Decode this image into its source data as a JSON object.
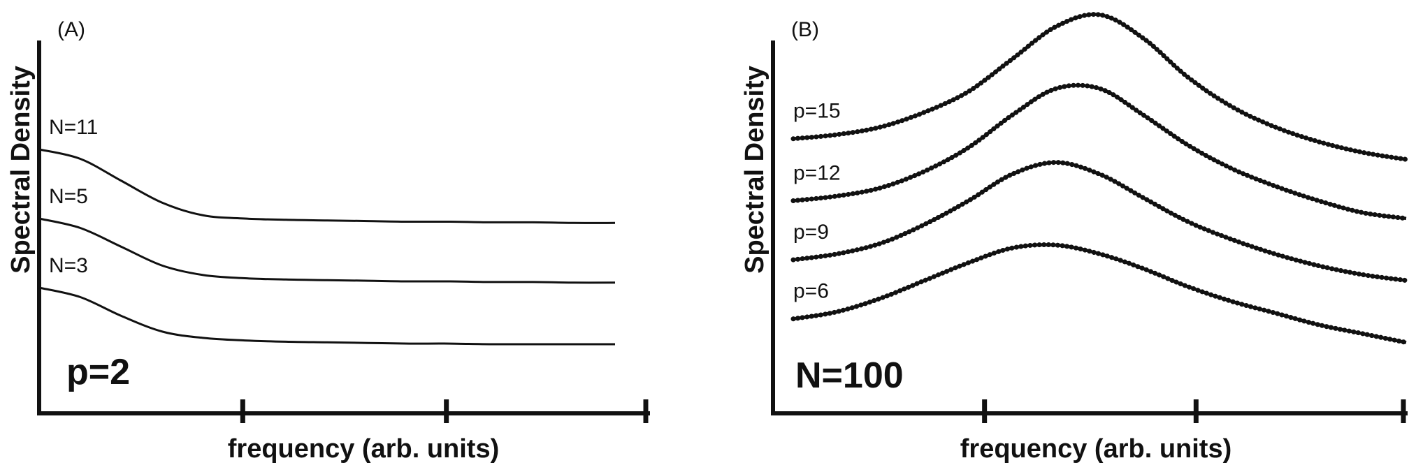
{
  "chart_data": [
    {
      "type": "line",
      "panel_label": "(A)",
      "ylabel": "Spectral Density",
      "xlabel": "frequency (arb. units)",
      "annotation": "p=2",
      "x": [
        0,
        0.5,
        1,
        1.5,
        2,
        2.5,
        3,
        3.5,
        4,
        4.5,
        5,
        5.5,
        6,
        6.5,
        7
      ],
      "series": [
        {
          "name": "N=11",
          "values": [
            4.2,
            4.05,
            3.7,
            3.35,
            3.15,
            3.1,
            3.08,
            3.07,
            3.06,
            3.05,
            3.05,
            3.04,
            3.04,
            3.03,
            3.03
          ]
        },
        {
          "name": "N=5",
          "values": [
            3.1,
            2.95,
            2.65,
            2.35,
            2.2,
            2.15,
            2.13,
            2.12,
            2.11,
            2.1,
            2.1,
            2.09,
            2.09,
            2.08,
            2.08
          ]
        },
        {
          "name": "N=3",
          "values": [
            2.0,
            1.85,
            1.55,
            1.3,
            1.2,
            1.16,
            1.14,
            1.13,
            1.12,
            1.11,
            1.11,
            1.1,
            1.1,
            1.1,
            1.1
          ]
        }
      ],
      "xlim": [
        0,
        7.5
      ],
      "ylim": [
        0,
        6
      ],
      "x_ticks": [
        2.5,
        5,
        7.5
      ],
      "tick_labels_shown": false
    },
    {
      "type": "line",
      "panel_label": "(B)",
      "ylabel": "Spectral Density",
      "xlabel": "frequency (arb. units)",
      "annotation": "N=100",
      "x": [
        0,
        0.5,
        1,
        1.5,
        2,
        2.5,
        3,
        3.5,
        4,
        4.5,
        5,
        5.5,
        6,
        6.5,
        7
      ],
      "series": [
        {
          "name": "p=15",
          "values": [
            4.65,
            4.72,
            4.85,
            5.1,
            5.45,
            6.0,
            6.55,
            6.75,
            6.35,
            5.7,
            5.2,
            4.85,
            4.6,
            4.42,
            4.3
          ]
        },
        {
          "name": "p=12",
          "values": [
            3.6,
            3.68,
            3.82,
            4.1,
            4.5,
            5.05,
            5.5,
            5.5,
            5.05,
            4.55,
            4.15,
            3.85,
            3.6,
            3.4,
            3.3
          ]
        },
        {
          "name": "p=9",
          "values": [
            2.6,
            2.7,
            2.88,
            3.2,
            3.6,
            4.05,
            4.25,
            4.05,
            3.65,
            3.25,
            2.95,
            2.7,
            2.5,
            2.35,
            2.25
          ]
        },
        {
          "name": "p=6",
          "values": [
            1.6,
            1.72,
            1.95,
            2.25,
            2.55,
            2.8,
            2.85,
            2.7,
            2.45,
            2.15,
            1.9,
            1.7,
            1.5,
            1.35,
            1.2
          ]
        }
      ],
      "xlim": [
        0,
        7.5
      ],
      "ylim": [
        0,
        7
      ],
      "x_ticks": [
        2.5,
        5,
        7.5
      ],
      "tick_labels_shown": false
    }
  ]
}
